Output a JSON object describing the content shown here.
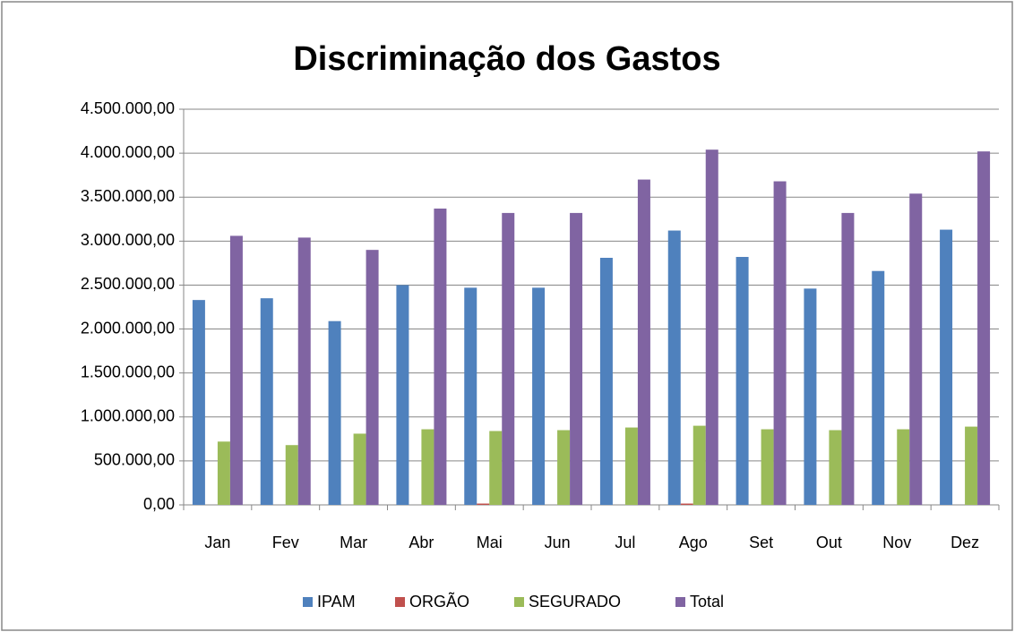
{
  "chart_data": {
    "type": "bar",
    "title": "Discriminação dos Gastos",
    "categories": [
      "Jan",
      "Fev",
      "Mar",
      "Abr",
      "Mai",
      "Jun",
      "Jul",
      "Ago",
      "Set",
      "Out",
      "Nov",
      "Dez"
    ],
    "series": [
      {
        "name": "IPAM",
        "color": "#4f81bd",
        "values": [
          2330000,
          2350000,
          2090000,
          2500000,
          2470000,
          2470000,
          2810000,
          3120000,
          2820000,
          2460000,
          2660000,
          3130000
        ]
      },
      {
        "name": "ORGÃO",
        "color": "#c0504d",
        "values": [
          0,
          0,
          0,
          0,
          15000,
          0,
          0,
          15000,
          0,
          0,
          0,
          0
        ]
      },
      {
        "name": "SEGURADO",
        "color": "#9bbb59",
        "values": [
          720000,
          680000,
          810000,
          860000,
          840000,
          850000,
          880000,
          900000,
          860000,
          850000,
          860000,
          890000
        ]
      },
      {
        "name": "Total",
        "color": "#8064a2",
        "values": [
          3060000,
          3040000,
          2900000,
          3370000,
          3320000,
          3320000,
          3700000,
          4040000,
          3680000,
          3320000,
          3540000,
          4020000
        ]
      }
    ],
    "ylim": [
      0,
      4500000
    ],
    "yticks": [
      {
        "value": 0,
        "label": "0,00"
      },
      {
        "value": 500000,
        "label": "500.000,00"
      },
      {
        "value": 1000000,
        "label": "1.000.000,00"
      },
      {
        "value": 1500000,
        "label": "1.500.000,00"
      },
      {
        "value": 2000000,
        "label": "2.000.000,00"
      },
      {
        "value": 2500000,
        "label": "2.500.000,00"
      },
      {
        "value": 3000000,
        "label": "3.000.000,00"
      },
      {
        "value": 3500000,
        "label": "3.500.000,00"
      },
      {
        "value": 4000000,
        "label": "4.000.000,00"
      },
      {
        "value": 4500000,
        "label": "4.500.000,00"
      }
    ],
    "grid": true,
    "legend": "bottom"
  }
}
